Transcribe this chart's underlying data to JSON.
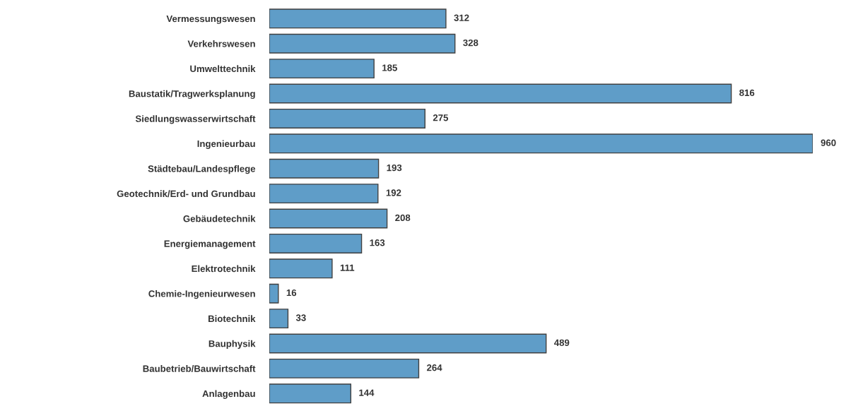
{
  "chart_data": {
    "type": "bar",
    "orientation": "horizontal",
    "data_labels": true,
    "grid": false,
    "legend": false,
    "categories": [
      "Vermessungswesen",
      "Verkehrswesen",
      "Umwelttechnik",
      "Baustatik/Tragwerksplanung",
      "Siedlungswasserwirtschaft",
      "Ingenieurbau",
      "Städtebau/Landespflege",
      "Geotechnik/Erd- und Grundbau",
      "Gebäudetechnik",
      "Energiemanagement",
      "Elektrotechnik",
      "Chemie-Ingenieurwesen",
      "Biotechnik",
      "Bauphysik",
      "Baubetrieb/Bauwirtschaft",
      "Anlagenbau"
    ],
    "values": [
      312,
      328,
      185,
      816,
      275,
      960,
      193,
      192,
      208,
      163,
      111,
      16,
      33,
      489,
      264,
      144
    ],
    "color": "#5f9dc8"
  }
}
